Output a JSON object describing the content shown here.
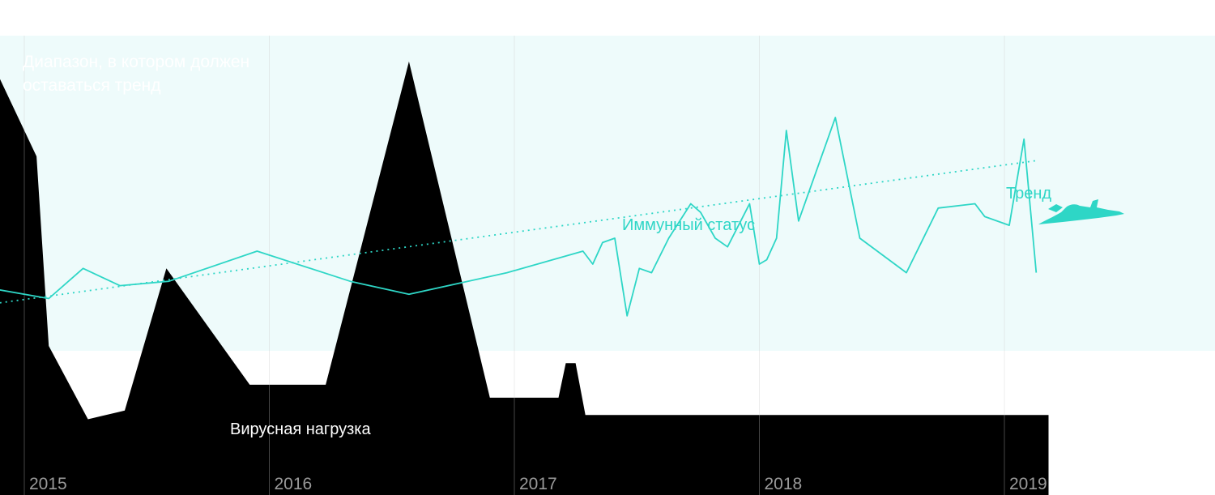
{
  "chart_data": {
    "type": "area",
    "band_label": "Диапазон, в котором должен оставаться тренд",
    "x_ticks": [
      "2015",
      "2016",
      "2017",
      "2018",
      "2019"
    ],
    "xlim": [
      2014.9,
      2019.18
    ],
    "series": [
      {
        "name": "Вирусная нагрузка",
        "style": "filled-area",
        "color": "#000000",
        "x": [
          2014.9,
          2015.05,
          2015.1,
          2015.26,
          2015.41,
          2015.58,
          2015.92,
          2016.23,
          2016.57,
          2016.9,
          2017.18,
          2017.21,
          2017.25,
          2017.29,
          2017.44
        ],
        "values": [
          90,
          72,
          28,
          11,
          13,
          46,
          19,
          19,
          94,
          16,
          16,
          24,
          24,
          12,
          12
        ]
      },
      {
        "name": "Иммунный статус",
        "style": "line",
        "color": "#2ed6c6",
        "x": [
          2014.9,
          2015.1,
          2015.24,
          2015.39,
          2015.59,
          2015.95,
          2016.33,
          2016.57,
          2016.97,
          2017.28,
          2017.32,
          2017.36,
          2017.41,
          2017.46,
          2017.51,
          2017.56,
          2017.63,
          2017.72,
          2017.76,
          2017.82,
          2017.87,
          2017.96,
          2018.0,
          2018.03,
          2018.07,
          2018.11,
          2018.16,
          2018.31,
          2018.41,
          2018.6,
          2018.73,
          2018.88,
          2018.92,
          2019.02,
          2019.08,
          2019.13
        ],
        "values": [
          41,
          39,
          46,
          42,
          43,
          50,
          43,
          40,
          45,
          50,
          47,
          52,
          53,
          35,
          46,
          45,
          53,
          61,
          59,
          53,
          51,
          61,
          47,
          48,
          53,
          78,
          57,
          81,
          53,
          45,
          60,
          61,
          58,
          56,
          76,
          45
        ]
      },
      {
        "name": "Тренд",
        "style": "dotted-line",
        "color": "#2ed6c6",
        "x": [
          2014.9,
          2019.13
        ],
        "values": [
          38,
          71
        ]
      }
    ],
    "colors": {
      "band": "#eefbfb",
      "line": "#2ed6c6",
      "area": "#000000",
      "grid": "#c9c9c9"
    }
  }
}
